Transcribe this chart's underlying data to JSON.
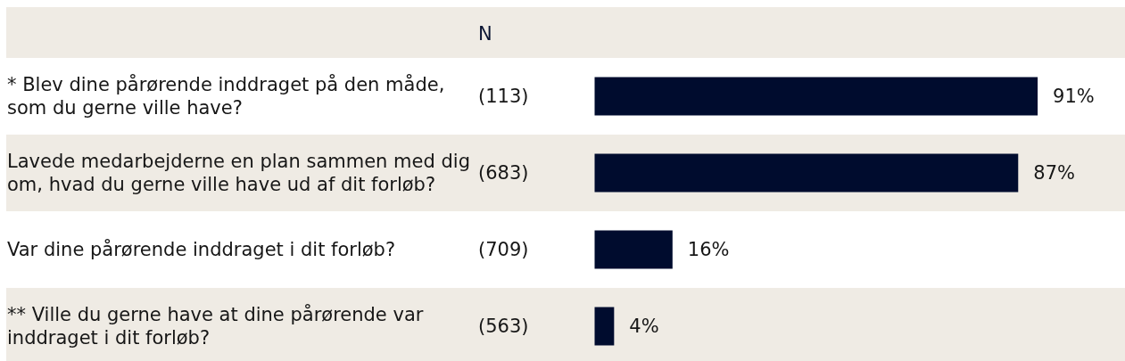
{
  "chart_data": {
    "type": "bar",
    "orientation": "horizontal",
    "categories": [
      "* Blev dine pårørende inddraget på den måde, som du gerne ville have?",
      "Lavede medarbejderne en plan sammen med dig om, hvad du gerne ville have ud af dit forløb?",
      "Var dine pårørende inddraget i dit forløb?",
      "** Ville du gerne have at dine pårørende var inddraget i dit forløb?"
    ],
    "values": [
      91,
      87,
      16,
      4
    ],
    "value_labels": [
      "91%",
      "87%",
      "16%",
      "4%"
    ],
    "color": "#000c2e",
    "annotations": [
      "N",
      "(113)",
      "(683)",
      "(709)",
      "(563)"
    ]
  }
}
